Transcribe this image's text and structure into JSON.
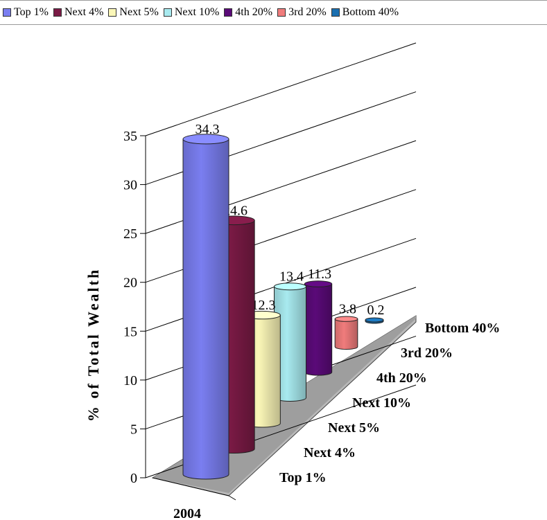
{
  "chart_data": {
    "type": "bar",
    "categories": [
      "2004"
    ],
    "series": [
      {
        "name": "Top 1%",
        "values": [
          34.3
        ],
        "color": "#7a7ef0"
      },
      {
        "name": "Next 4%",
        "values": [
          24.6
        ],
        "color": "#7a1a45"
      },
      {
        "name": "Next 5%",
        "values": [
          12.3
        ],
        "color": "#fbf7b8"
      },
      {
        "name": "Next 10%",
        "values": [
          13.4
        ],
        "color": "#a8eaef"
      },
      {
        "name": "4th 20%",
        "values": [
          11.3
        ],
        "color": "#5a0a78"
      },
      {
        "name": "3rd 20%",
        "values": [
          3.8
        ],
        "color": "#f07c7c"
      },
      {
        "name": "Bottom 40%",
        "values": [
          0.2
        ],
        "color": "#1a6fb0"
      }
    ],
    "data_labels": [
      "34.3",
      "24.6",
      "12.3",
      "13.4",
      "11.3",
      "3.8",
      "0.2"
    ],
    "ylabel": "% of Total Wealth",
    "ylim": [
      0,
      35
    ],
    "yticks": [
      "0",
      "5",
      "10",
      "15",
      "20",
      "25",
      "30",
      "35"
    ],
    "grid": true,
    "legend_position": "top",
    "style": "3D cylinders"
  }
}
